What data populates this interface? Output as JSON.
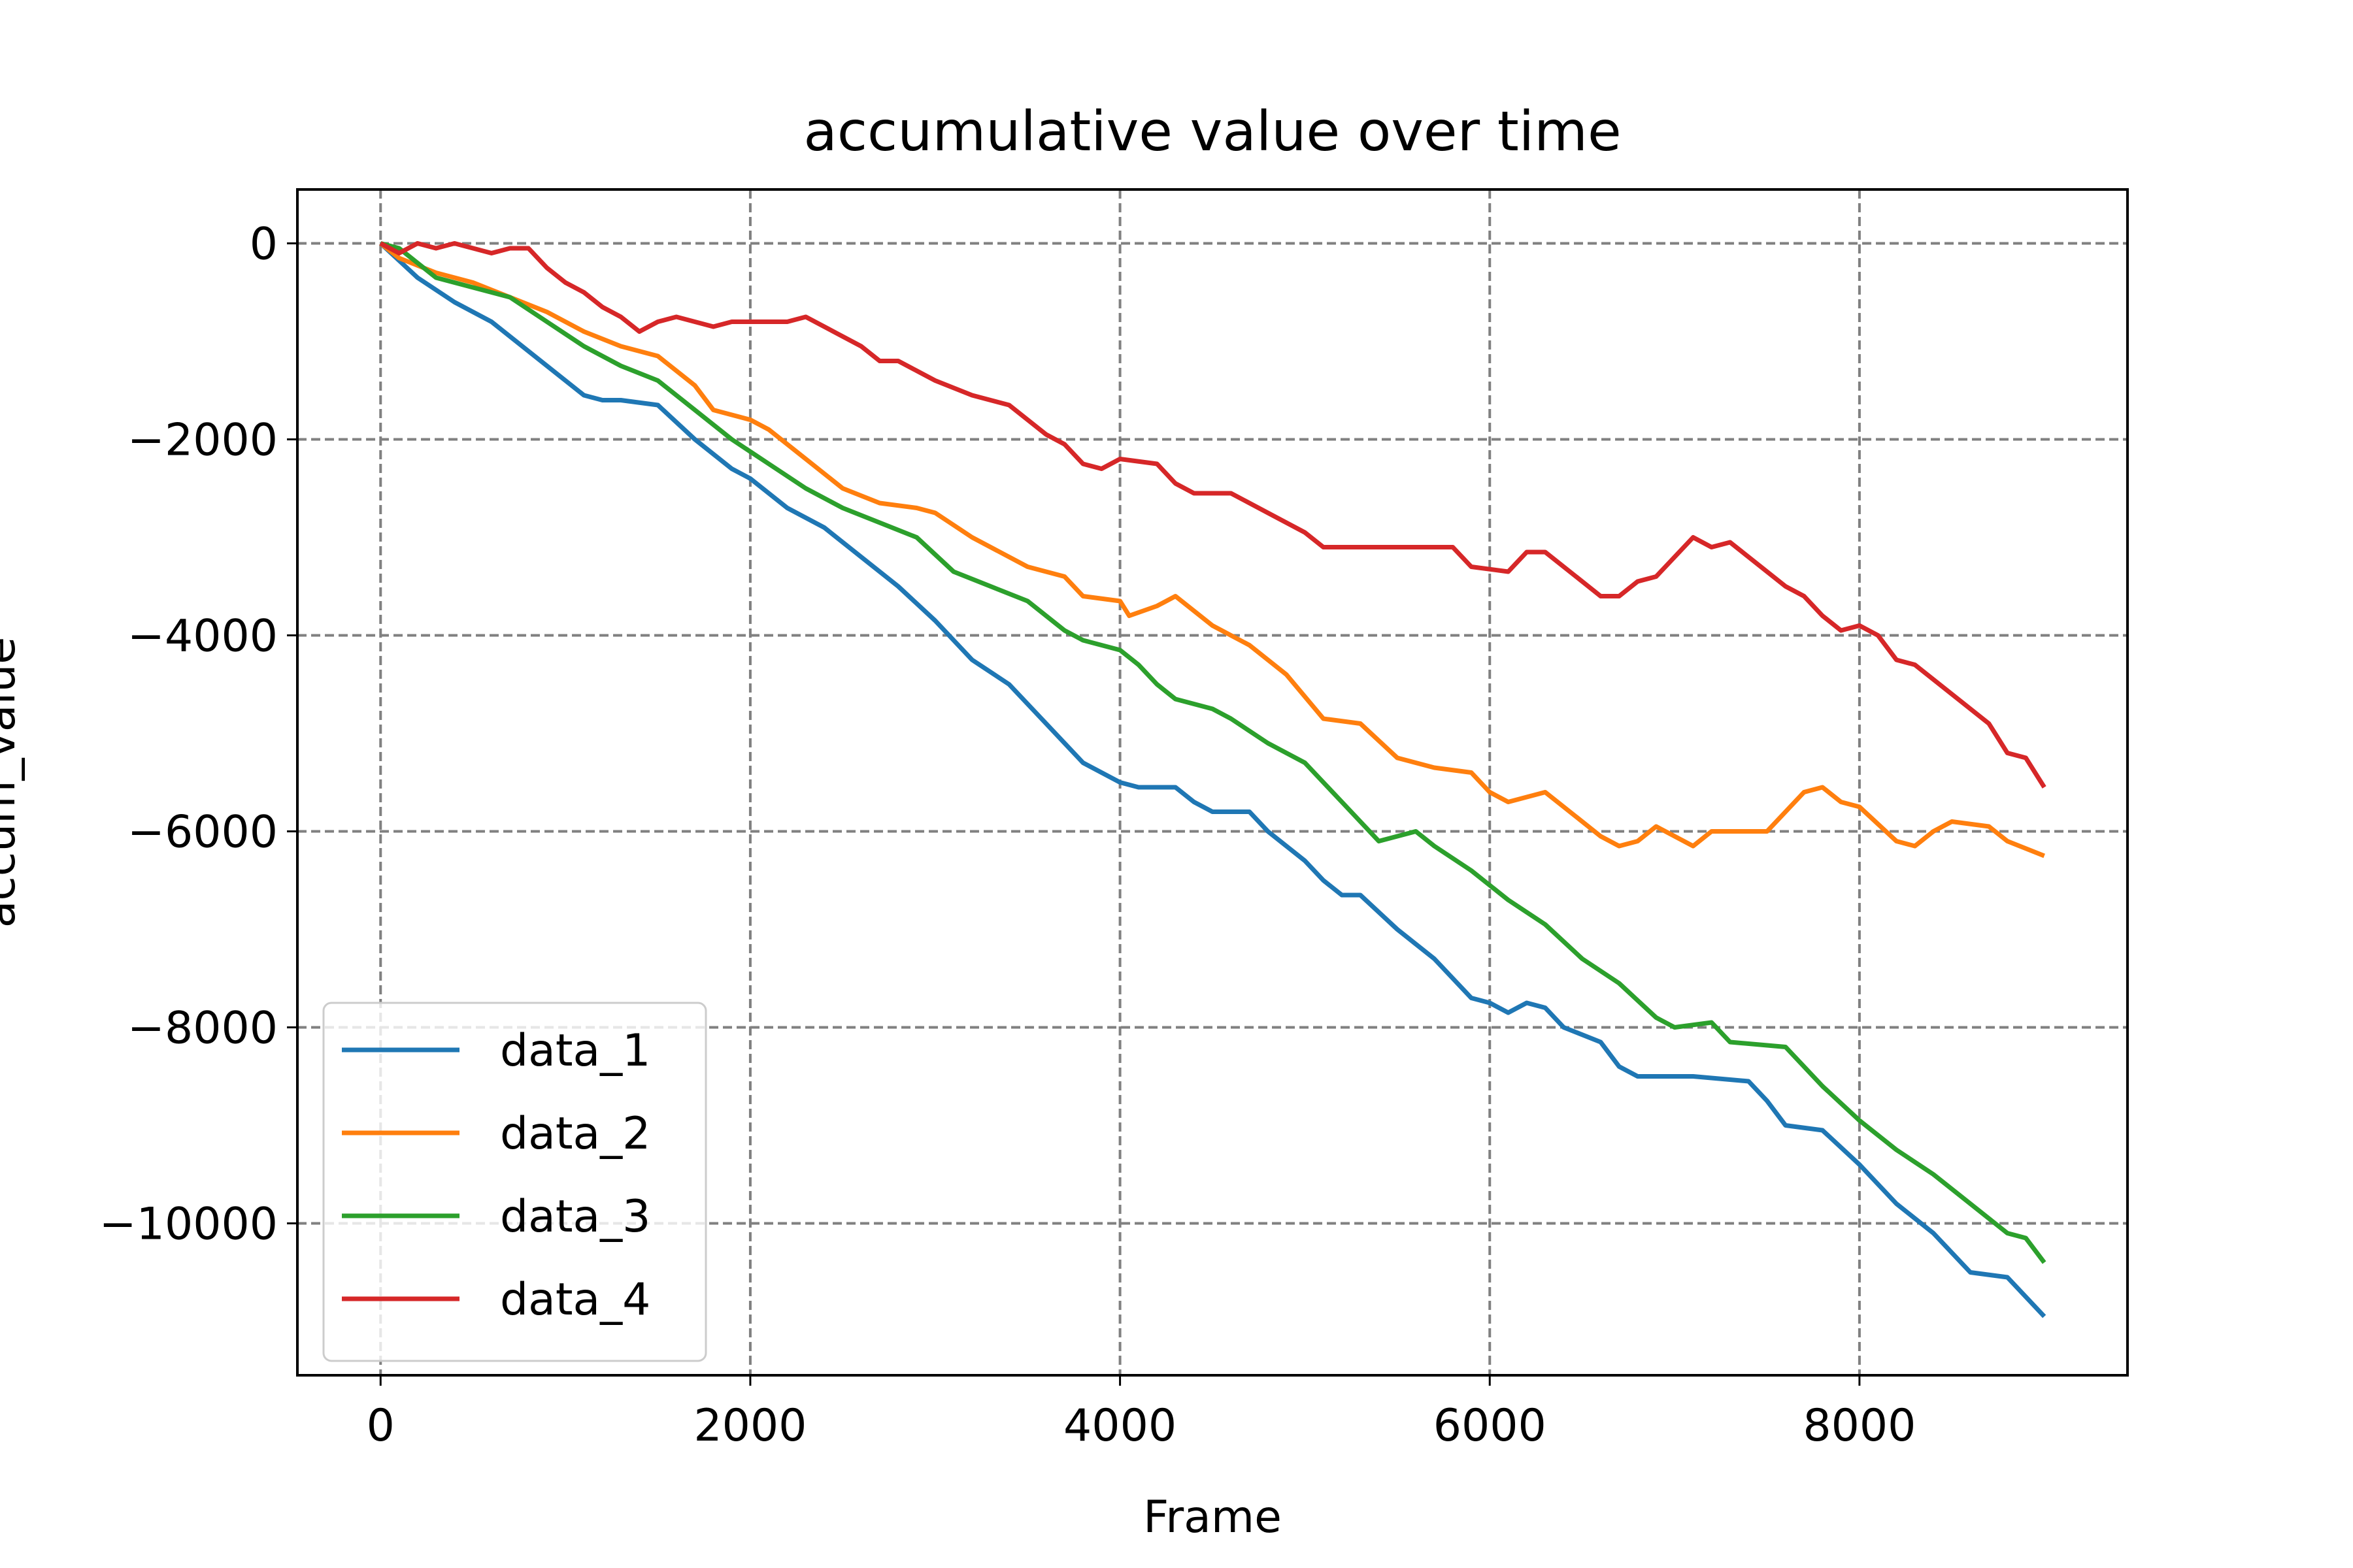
{
  "chart_data": {
    "type": "line",
    "title": "accumulative value over time",
    "xlabel": "Frame",
    "ylabel": "accum_value",
    "xlim": [
      -450,
      9450
    ],
    "ylim": [
      -11550,
      550
    ],
    "xticks": [
      0,
      2000,
      4000,
      6000,
      8000
    ],
    "xtick_labels": [
      "0",
      "2000",
      "4000",
      "6000",
      "8000"
    ],
    "yticks": [
      0,
      -2000,
      -4000,
      -6000,
      -8000,
      -10000
    ],
    "ytick_labels": [
      "0",
      "−2000",
      "−4000",
      "−6000",
      "−8000",
      "−10000"
    ],
    "grid": true,
    "legend_position": "lower-left",
    "series": [
      {
        "name": "data_1",
        "color": "#1f77b4",
        "points": [
          [
            0,
            0
          ],
          [
            200,
            -350
          ],
          [
            400,
            -600
          ],
          [
            600,
            -800
          ],
          [
            900,
            -1250
          ],
          [
            1100,
            -1550
          ],
          [
            1200,
            -1600
          ],
          [
            1300,
            -1600
          ],
          [
            1500,
            -1650
          ],
          [
            1700,
            -2000
          ],
          [
            1900,
            -2300
          ],
          [
            2000,
            -2400
          ],
          [
            2200,
            -2700
          ],
          [
            2400,
            -2900
          ],
          [
            2600,
            -3200
          ],
          [
            2800,
            -3500
          ],
          [
            3000,
            -3850
          ],
          [
            3200,
            -4250
          ],
          [
            3400,
            -4500
          ],
          [
            3600,
            -4900
          ],
          [
            3800,
            -5300
          ],
          [
            3900,
            -5400
          ],
          [
            4000,
            -5500
          ],
          [
            4100,
            -5550
          ],
          [
            4200,
            -5550
          ],
          [
            4300,
            -5550
          ],
          [
            4400,
            -5700
          ],
          [
            4500,
            -5800
          ],
          [
            4700,
            -5800
          ],
          [
            4800,
            -6000
          ],
          [
            5000,
            -6300
          ],
          [
            5100,
            -6500
          ],
          [
            5200,
            -6650
          ],
          [
            5300,
            -6650
          ],
          [
            5500,
            -7000
          ],
          [
            5700,
            -7300
          ],
          [
            5800,
            -7500
          ],
          [
            5900,
            -7700
          ],
          [
            6000,
            -7750
          ],
          [
            6100,
            -7850
          ],
          [
            6200,
            -7750
          ],
          [
            6300,
            -7800
          ],
          [
            6400,
            -8000
          ],
          [
            6600,
            -8150
          ],
          [
            6700,
            -8400
          ],
          [
            6800,
            -8500
          ],
          [
            7100,
            -8500
          ],
          [
            7400,
            -8550
          ],
          [
            7500,
            -8750
          ],
          [
            7600,
            -9000
          ],
          [
            7800,
            -9050
          ],
          [
            8000,
            -9400
          ],
          [
            8200,
            -9800
          ],
          [
            8400,
            -10100
          ],
          [
            8600,
            -10500
          ],
          [
            8800,
            -10550
          ],
          [
            9000,
            -10950
          ]
        ]
      },
      {
        "name": "data_2",
        "color": "#ff7f0e",
        "points": [
          [
            0,
            0
          ],
          [
            100,
            -150
          ],
          [
            300,
            -300
          ],
          [
            500,
            -400
          ],
          [
            700,
            -550
          ],
          [
            900,
            -700
          ],
          [
            1100,
            -900
          ],
          [
            1300,
            -1050
          ],
          [
            1500,
            -1150
          ],
          [
            1700,
            -1450
          ],
          [
            1800,
            -1700
          ],
          [
            2000,
            -1800
          ],
          [
            2100,
            -1900
          ],
          [
            2300,
            -2200
          ],
          [
            2500,
            -2500
          ],
          [
            2700,
            -2650
          ],
          [
            2900,
            -2700
          ],
          [
            3000,
            -2750
          ],
          [
            3200,
            -3000
          ],
          [
            3300,
            -3100
          ],
          [
            3500,
            -3300
          ],
          [
            3700,
            -3400
          ],
          [
            3800,
            -3600
          ],
          [
            4000,
            -3650
          ],
          [
            4050,
            -3800
          ],
          [
            4200,
            -3700
          ],
          [
            4300,
            -3600
          ],
          [
            4500,
            -3900
          ],
          [
            4700,
            -4100
          ],
          [
            4900,
            -4400
          ],
          [
            5100,
            -4850
          ],
          [
            5300,
            -4900
          ],
          [
            5500,
            -5250
          ],
          [
            5700,
            -5350
          ],
          [
            5900,
            -5400
          ],
          [
            6000,
            -5600
          ],
          [
            6100,
            -5700
          ],
          [
            6300,
            -5600
          ],
          [
            6500,
            -5900
          ],
          [
            6600,
            -6050
          ],
          [
            6700,
            -6150
          ],
          [
            6800,
            -6100
          ],
          [
            6900,
            -5950
          ],
          [
            7000,
            -6050
          ],
          [
            7100,
            -6150
          ],
          [
            7200,
            -6000
          ],
          [
            7300,
            -6000
          ],
          [
            7500,
            -6000
          ],
          [
            7600,
            -5800
          ],
          [
            7700,
            -5600
          ],
          [
            7800,
            -5550
          ],
          [
            7900,
            -5700
          ],
          [
            8000,
            -5750
          ],
          [
            8200,
            -6100
          ],
          [
            8300,
            -6150
          ],
          [
            8400,
            -6000
          ],
          [
            8500,
            -5900
          ],
          [
            8700,
            -5950
          ],
          [
            8800,
            -6100
          ],
          [
            9000,
            -6250
          ]
        ]
      },
      {
        "name": "data_3",
        "color": "#2ca02c",
        "points": [
          [
            0,
            0
          ],
          [
            100,
            -50
          ],
          [
            300,
            -350
          ],
          [
            500,
            -450
          ],
          [
            700,
            -550
          ],
          [
            900,
            -800
          ],
          [
            1100,
            -1050
          ],
          [
            1300,
            -1250
          ],
          [
            1500,
            -1400
          ],
          [
            1700,
            -1700
          ],
          [
            1900,
            -2000
          ],
          [
            2100,
            -2250
          ],
          [
            2300,
            -2500
          ],
          [
            2500,
            -2700
          ],
          [
            2700,
            -2850
          ],
          [
            2900,
            -3000
          ],
          [
            3100,
            -3350
          ],
          [
            3300,
            -3500
          ],
          [
            3500,
            -3650
          ],
          [
            3700,
            -3950
          ],
          [
            3800,
            -4050
          ],
          [
            4000,
            -4150
          ],
          [
            4100,
            -4300
          ],
          [
            4200,
            -4500
          ],
          [
            4300,
            -4650
          ],
          [
            4500,
            -4750
          ],
          [
            4600,
            -4850
          ],
          [
            4800,
            -5100
          ],
          [
            5000,
            -5300
          ],
          [
            5200,
            -5700
          ],
          [
            5400,
            -6100
          ],
          [
            5600,
            -6000
          ],
          [
            5700,
            -6150
          ],
          [
            5900,
            -6400
          ],
          [
            6100,
            -6700
          ],
          [
            6300,
            -6950
          ],
          [
            6500,
            -7300
          ],
          [
            6700,
            -7550
          ],
          [
            6900,
            -7900
          ],
          [
            7000,
            -8000
          ],
          [
            7200,
            -7950
          ],
          [
            7300,
            -8150
          ],
          [
            7600,
            -8200
          ],
          [
            7800,
            -8600
          ],
          [
            8000,
            -8950
          ],
          [
            8200,
            -9250
          ],
          [
            8400,
            -9500
          ],
          [
            8600,
            -9800
          ],
          [
            8800,
            -10100
          ],
          [
            8900,
            -10150
          ],
          [
            9000,
            -10400
          ]
        ]
      },
      {
        "name": "data_4",
        "color": "#d62728",
        "points": [
          [
            0,
            0
          ],
          [
            100,
            -100
          ],
          [
            200,
            0
          ],
          [
            300,
            -50
          ],
          [
            400,
            0
          ],
          [
            500,
            -50
          ],
          [
            600,
            -100
          ],
          [
            700,
            -50
          ],
          [
            800,
            -50
          ],
          [
            900,
            -250
          ],
          [
            1000,
            -400
          ],
          [
            1100,
            -500
          ],
          [
            1200,
            -650
          ],
          [
            1300,
            -750
          ],
          [
            1400,
            -900
          ],
          [
            1500,
            -800
          ],
          [
            1600,
            -750
          ],
          [
            1700,
            -800
          ],
          [
            1800,
            -850
          ],
          [
            1900,
            -800
          ],
          [
            2000,
            -800
          ],
          [
            2200,
            -800
          ],
          [
            2300,
            -750
          ],
          [
            2400,
            -850
          ],
          [
            2500,
            -950
          ],
          [
            2600,
            -1050
          ],
          [
            2700,
            -1200
          ],
          [
            2800,
            -1200
          ],
          [
            2900,
            -1300
          ],
          [
            3000,
            -1400
          ],
          [
            3200,
            -1550
          ],
          [
            3400,
            -1650
          ],
          [
            3500,
            -1800
          ],
          [
            3600,
            -1950
          ],
          [
            3700,
            -2050
          ],
          [
            3800,
            -2250
          ],
          [
            3900,
            -2300
          ],
          [
            4000,
            -2200
          ],
          [
            4200,
            -2250
          ],
          [
            4300,
            -2450
          ],
          [
            4400,
            -2550
          ],
          [
            4600,
            -2550
          ],
          [
            4800,
            -2750
          ],
          [
            4900,
            -2850
          ],
          [
            5000,
            -2950
          ],
          [
            5100,
            -3100
          ],
          [
            5800,
            -3100
          ],
          [
            5900,
            -3300
          ],
          [
            6100,
            -3350
          ],
          [
            6200,
            -3150
          ],
          [
            6300,
            -3150
          ],
          [
            6500,
            -3450
          ],
          [
            6600,
            -3600
          ],
          [
            6700,
            -3600
          ],
          [
            6800,
            -3450
          ],
          [
            6900,
            -3400
          ],
          [
            7000,
            -3200
          ],
          [
            7100,
            -3000
          ],
          [
            7200,
            -3100
          ],
          [
            7300,
            -3050
          ],
          [
            7400,
            -3200
          ],
          [
            7600,
            -3500
          ],
          [
            7700,
            -3600
          ],
          [
            7800,
            -3800
          ],
          [
            7900,
            -3950
          ],
          [
            8000,
            -3900
          ],
          [
            8100,
            -4000
          ],
          [
            8200,
            -4250
          ],
          [
            8300,
            -4300
          ],
          [
            8500,
            -4600
          ],
          [
            8700,
            -4900
          ],
          [
            8800,
            -5200
          ],
          [
            8900,
            -5250
          ],
          [
            9000,
            -5550
          ]
        ]
      }
    ]
  }
}
